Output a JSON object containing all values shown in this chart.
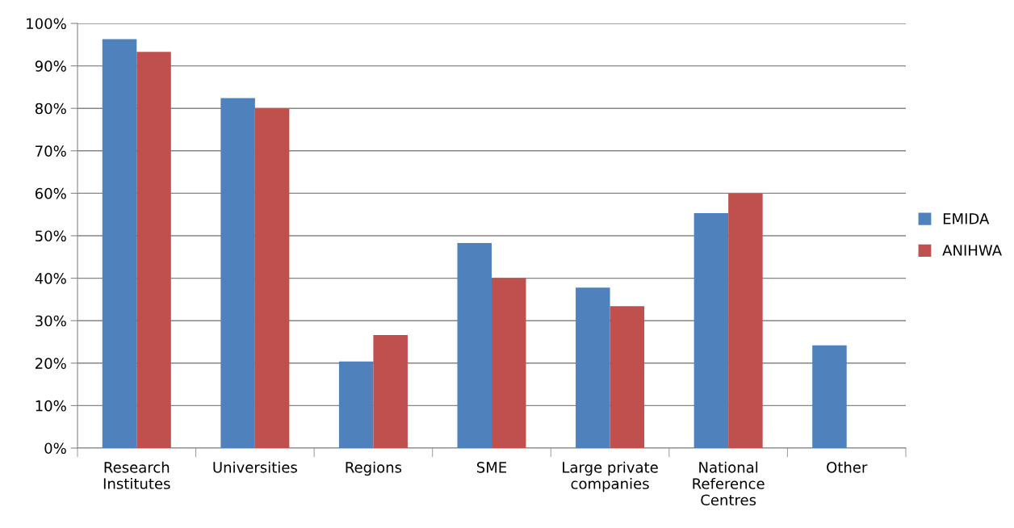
{
  "chart_data": {
    "type": "bar",
    "categories": [
      "Research\nInstitutes",
      "Universities",
      "Regions",
      "SME",
      "Large private\ncompanies",
      "National\nReference\nCentres",
      "Other"
    ],
    "series": [
      {
        "name": "EMIDA",
        "color": "#4f81bd",
        "values": [
          96.3,
          82.4,
          20.4,
          48.3,
          37.8,
          55.3,
          24.2
        ]
      },
      {
        "name": "ANIHWA",
        "color": "#c0504d",
        "values": [
          93.3,
          80,
          26.6,
          40,
          33.4,
          60,
          null
        ]
      }
    ],
    "ylim": [
      0,
      100
    ],
    "yticks": [
      {
        "value": 0,
        "label": "0%"
      },
      {
        "value": 10,
        "label": "10%"
      },
      {
        "value": 20,
        "label": "20%"
      },
      {
        "value": 30,
        "label": "30%"
      },
      {
        "value": 40,
        "label": "40%"
      },
      {
        "value": 50,
        "label": "50%"
      },
      {
        "value": 60,
        "label": "60%"
      },
      {
        "value": 70,
        "label": "70%"
      },
      {
        "value": 80,
        "label": "80%"
      },
      {
        "value": 90,
        "label": "90%"
      },
      {
        "value": 100,
        "label": "100%"
      }
    ],
    "grid": "y",
    "legend": "right"
  }
}
